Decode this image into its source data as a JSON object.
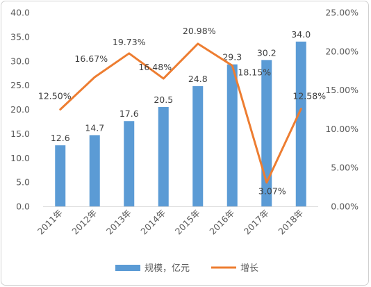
{
  "chart_data": {
    "type": "bar+line",
    "categories": [
      "2011年",
      "2012年",
      "2013年",
      "2014年",
      "2015年",
      "2016年",
      "2017年",
      "2018年"
    ],
    "series": [
      {
        "name": "规模，亿元",
        "type": "bar",
        "axis": "left",
        "values": [
          12.6,
          14.7,
          17.6,
          20.5,
          24.8,
          29.3,
          30.2,
          34.0
        ],
        "labels": [
          "12.6",
          "14.7",
          "17.6",
          "20.5",
          "24.8",
          "29.3",
          "30.2",
          "34.0"
        ],
        "color": "#5b9bd5"
      },
      {
        "name": "增长",
        "type": "line",
        "axis": "right",
        "values": [
          12.5,
          16.67,
          19.73,
          16.48,
          20.98,
          18.15,
          3.07,
          12.58
        ],
        "labels": [
          "12.50%",
          "16.67%",
          "19.73%",
          "16.48%",
          "20.98%",
          "18.15%",
          "3.07%",
          "12.58%"
        ],
        "color": "#ed7d31"
      }
    ],
    "y_left": {
      "range": [
        0,
        40
      ],
      "ticks": [
        "0.0",
        "5.0",
        "10.0",
        "15.0",
        "20.0",
        "25.0",
        "30.0",
        "35.0",
        "40.0"
      ]
    },
    "y_right": {
      "range": [
        0,
        25
      ],
      "ticks": [
        "0.00%",
        "5.00%",
        "10.00%",
        "15.00%",
        "20.00%",
        "25.00%"
      ]
    },
    "grid": false,
    "legend_position": "bottom"
  }
}
